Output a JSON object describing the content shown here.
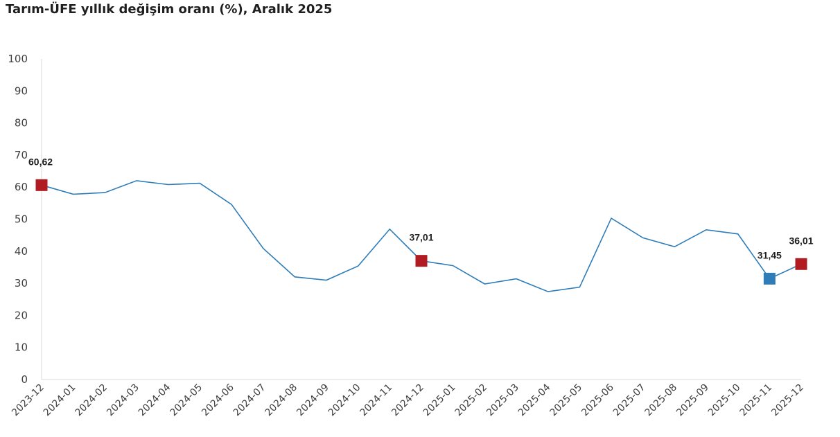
{
  "chart_data": {
    "type": "line",
    "title": "Tarım-ÜFE yıllık değişim oranı (%), Aralık 2025",
    "xlabel": "",
    "ylabel": "",
    "ylim": [
      0,
      100
    ],
    "yticks": [
      0,
      10,
      20,
      30,
      40,
      50,
      60,
      70,
      80,
      90,
      100
    ],
    "grid": false,
    "legend": "none",
    "x": [
      "2023-12",
      "2024-01",
      "2024-02",
      "2024-03",
      "2024-04",
      "2024-05",
      "2024-06",
      "2024-07",
      "2024-08",
      "2024-09",
      "2024-10",
      "2024-11",
      "2024-12",
      "2025-01",
      "2025-02",
      "2025-03",
      "2025-04",
      "2025-05",
      "2025-06",
      "2025-07",
      "2025-08",
      "2025-09",
      "2025-10",
      "2025-11",
      "2025-12"
    ],
    "series": [
      {
        "color": "#2e7cb8",
        "values": [
          60.62,
          57.8,
          58.3,
          62.0,
          60.8,
          61.2,
          54.6,
          40.9,
          32.0,
          31.0,
          35.4,
          46.9,
          37.01,
          35.5,
          29.8,
          31.4,
          27.4,
          28.8,
          50.3,
          44.2,
          41.4,
          46.7,
          45.4,
          31.45,
          36.01
        ]
      }
    ],
    "highlighted_points": [
      {
        "x": "2023-12",
        "value": 60.62,
        "label": "60,62",
        "color": "#b01c22"
      },
      {
        "x": "2024-12",
        "value": 37.01,
        "label": "37,01",
        "color": "#b01c22"
      },
      {
        "x": "2025-11",
        "value": 31.45,
        "label": "31,45",
        "color": "#2e7cb8"
      },
      {
        "x": "2025-12",
        "value": 36.01,
        "label": "36,01",
        "color": "#b01c22"
      }
    ],
    "axis_color": "#d9d9d9",
    "text_color": "#404040"
  }
}
